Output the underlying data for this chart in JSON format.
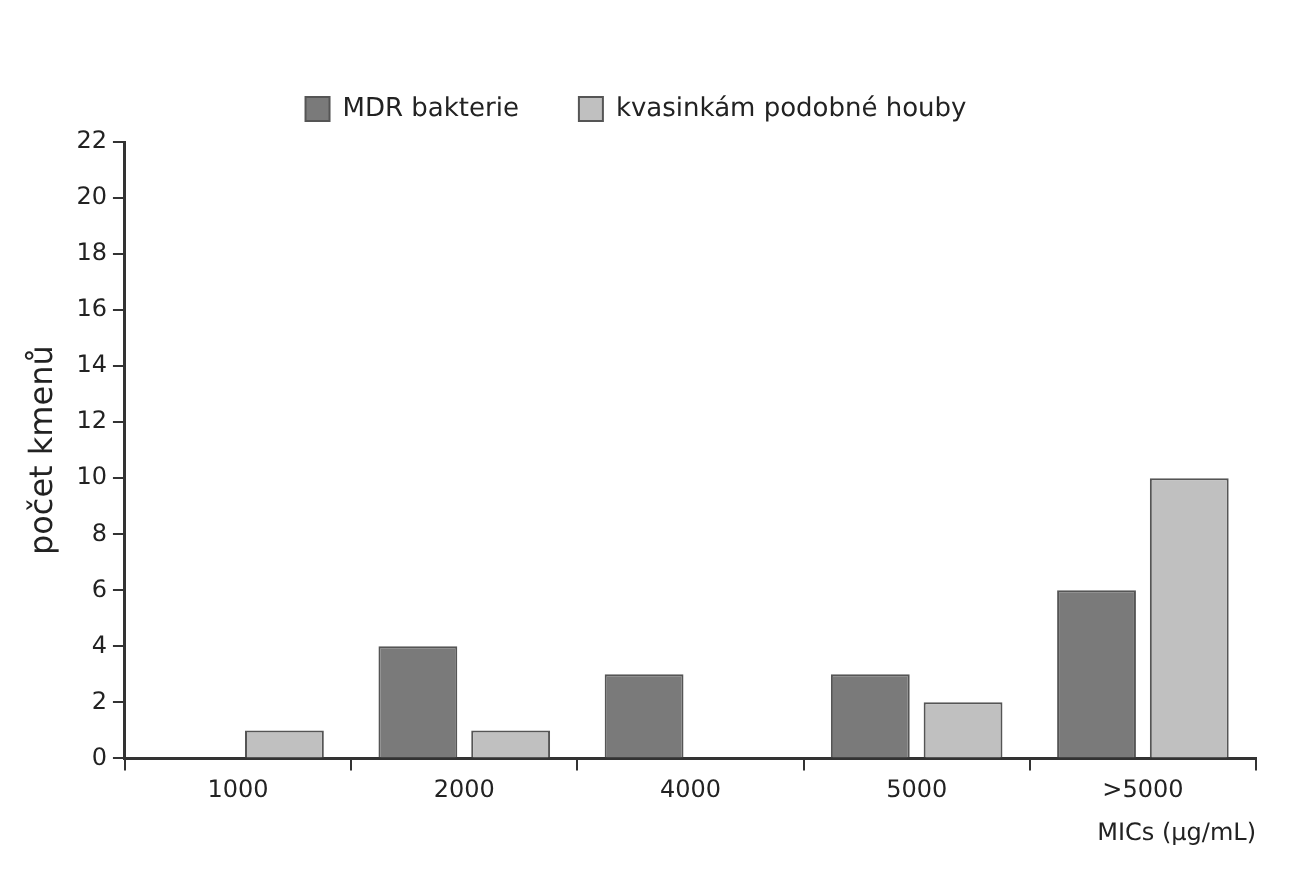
{
  "chart_data": {
    "type": "bar",
    "xlabel": "MICs (µg/mL)",
    "ylabel": "počet kmenů",
    "categories": [
      "1000",
      "2000",
      "4000",
      "5000",
      ">5000"
    ],
    "series": [
      {
        "name": "MDR bakterie",
        "color": "#7a7a7a",
        "values": [
          0,
          4,
          3,
          3,
          6
        ]
      },
      {
        "name": "kvasinkám podobné houby",
        "color": "#c0c0c0",
        "values": [
          1,
          1,
          0,
          2,
          10
        ]
      }
    ],
    "ylim": [
      0,
      22
    ],
    "yticks": [
      0,
      2,
      4,
      6,
      8,
      10,
      12,
      14,
      16,
      18,
      20,
      22
    ],
    "grid": false,
    "legend": "top"
  }
}
